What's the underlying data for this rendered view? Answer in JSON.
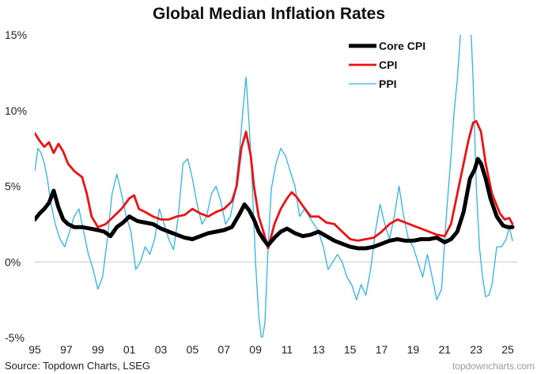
{
  "chart_data": {
    "type": "line",
    "title": "Global Median Inflation Rates",
    "xlabel": "",
    "ylabel": "",
    "x_range": [
      1995,
      2025.6
    ],
    "y_range": [
      -5,
      15
    ],
    "y_ticks": [
      {
        "value": -5,
        "label": "-5%"
      },
      {
        "value": 0,
        "label": "0%"
      },
      {
        "value": 5,
        "label": "5%"
      },
      {
        "value": 10,
        "label": "10%"
      },
      {
        "value": 15,
        "label": "15%"
      }
    ],
    "x_ticks": [
      {
        "value": 1995,
        "label": "95"
      },
      {
        "value": 1997,
        "label": "97"
      },
      {
        "value": 1999,
        "label": "99"
      },
      {
        "value": 2001,
        "label": "01"
      },
      {
        "value": 2003,
        "label": "03"
      },
      {
        "value": 2005,
        "label": "05"
      },
      {
        "value": 2007,
        "label": "07"
      },
      {
        "value": 2009,
        "label": "09"
      },
      {
        "value": 2011,
        "label": "11"
      },
      {
        "value": 2013,
        "label": "13"
      },
      {
        "value": 2015,
        "label": "15"
      },
      {
        "value": 2017,
        "label": "17"
      },
      {
        "value": 2019,
        "label": "19"
      },
      {
        "value": 2021,
        "label": "21"
      },
      {
        "value": 2023,
        "label": "23"
      },
      {
        "value": 2025,
        "label": "25"
      }
    ],
    "grid": false,
    "legend_position": "top-right",
    "series": [
      {
        "name": "Core CPI",
        "color": "#000000",
        "x": [
          1995.0,
          1995.3,
          1995.6,
          1995.9,
          1996.2,
          1996.5,
          1996.8,
          1997.1,
          1997.5,
          1998.0,
          1998.5,
          1999.0,
          1999.4,
          1999.8,
          2000.2,
          2000.6,
          2001.0,
          2001.5,
          2002.0,
          2002.5,
          2003.0,
          2003.5,
          2004.0,
          2004.5,
          2005.0,
          2005.5,
          2006.0,
          2006.5,
          2007.0,
          2007.5,
          2008.0,
          2008.3,
          2008.6,
          2008.9,
          2009.2,
          2009.5,
          2009.8,
          2010.2,
          2010.6,
          2011.0,
          2011.5,
          2012.0,
          2012.5,
          2013.0,
          2013.5,
          2014.0,
          2014.5,
          2015.0,
          2015.5,
          2016.0,
          2016.5,
          2017.0,
          2017.5,
          2018.0,
          2018.5,
          2019.0,
          2019.5,
          2020.0,
          2020.5,
          2021.0,
          2021.4,
          2021.8,
          2022.2,
          2022.6,
          2022.9,
          2023.1,
          2023.3,
          2023.6,
          2023.9,
          2024.3,
          2024.7,
          2025.0,
          2025.3
        ],
        "y": [
          2.8,
          3.2,
          3.5,
          3.9,
          4.7,
          3.6,
          2.8,
          2.5,
          2.3,
          2.3,
          2.2,
          2.1,
          2.0,
          1.7,
          2.3,
          2.6,
          3.0,
          2.7,
          2.6,
          2.5,
          2.2,
          2.0,
          1.8,
          1.6,
          1.5,
          1.7,
          1.9,
          2.0,
          2.1,
          2.3,
          3.2,
          3.8,
          3.4,
          2.8,
          2.0,
          1.5,
          1.1,
          1.6,
          2.0,
          2.2,
          1.9,
          1.7,
          1.8,
          2.0,
          1.7,
          1.4,
          1.2,
          1.0,
          0.9,
          0.9,
          1.0,
          1.2,
          1.4,
          1.5,
          1.4,
          1.4,
          1.5,
          1.5,
          1.6,
          1.3,
          1.5,
          2.0,
          3.3,
          5.5,
          6.1,
          6.8,
          6.5,
          5.5,
          4.2,
          3.0,
          2.4,
          2.3,
          2.3
        ]
      },
      {
        "name": "CPI",
        "color": "#ee1111",
        "x": [
          1995.0,
          1995.3,
          1995.6,
          1995.9,
          1996.2,
          1996.5,
          1996.8,
          1997.1,
          1997.5,
          1998.0,
          1998.3,
          1998.6,
          1999.0,
          1999.5,
          2000.0,
          2000.5,
          2001.0,
          2001.3,
          2001.6,
          2002.0,
          2002.5,
          2003.0,
          2003.5,
          2004.0,
          2004.5,
          2005.0,
          2005.5,
          2006.0,
          2006.5,
          2007.0,
          2007.5,
          2007.8,
          2008.1,
          2008.4,
          2008.7,
          2008.9,
          2009.2,
          2009.5,
          2009.8,
          2010.2,
          2010.6,
          2011.0,
          2011.3,
          2011.6,
          2012.0,
          2012.5,
          2013.0,
          2013.5,
          2014.0,
          2014.5,
          2015.0,
          2015.5,
          2016.0,
          2016.5,
          2017.0,
          2017.5,
          2018.0,
          2018.5,
          2019.0,
          2019.5,
          2020.0,
          2020.5,
          2021.0,
          2021.4,
          2021.8,
          2022.2,
          2022.5,
          2022.8,
          2023.0,
          2023.3,
          2023.6,
          2024.0,
          2024.5,
          2024.8,
          2025.1,
          2025.3
        ],
        "y": [
          8.5,
          8.0,
          7.6,
          7.9,
          7.2,
          7.8,
          7.3,
          6.5,
          6.0,
          5.6,
          4.5,
          3.0,
          2.3,
          2.5,
          3.0,
          3.5,
          4.2,
          4.4,
          3.5,
          3.3,
          3.0,
          2.8,
          2.8,
          3.0,
          3.1,
          3.5,
          3.2,
          3.0,
          3.3,
          3.5,
          4.0,
          5.0,
          7.5,
          8.6,
          7.0,
          5.0,
          3.0,
          2.0,
          0.9,
          2.5,
          3.5,
          4.2,
          4.6,
          4.3,
          3.7,
          3.0,
          3.0,
          2.6,
          2.5,
          2.0,
          1.5,
          1.4,
          1.5,
          1.6,
          2.0,
          2.5,
          2.8,
          2.6,
          2.4,
          2.2,
          2.0,
          1.8,
          1.7,
          2.5,
          4.5,
          6.5,
          8.0,
          9.2,
          9.3,
          8.6,
          6.5,
          4.5,
          3.2,
          2.8,
          2.9,
          2.5
        ]
      },
      {
        "name": "PPI",
        "color": "#2eb2e8",
        "x": [
          1995.0,
          1995.2,
          1995.4,
          1995.6,
          1995.8,
          1996.0,
          1996.3,
          1996.6,
          1996.9,
          1997.2,
          1997.5,
          1997.8,
          1998.1,
          1998.4,
          1998.7,
          1999.0,
          1999.3,
          1999.6,
          1999.9,
          2000.2,
          2000.5,
          2000.8,
          2001.1,
          2001.4,
          2001.7,
          2002.0,
          2002.3,
          2002.6,
          2002.9,
          2003.2,
          2003.5,
          2003.8,
          2004.1,
          2004.4,
          2004.7,
          2005.0,
          2005.3,
          2005.6,
          2005.9,
          2006.2,
          2006.5,
          2006.8,
          2007.1,
          2007.4,
          2007.7,
          2008.0,
          2008.2,
          2008.4,
          2008.6,
          2008.8,
          2009.0,
          2009.2,
          2009.4,
          2009.6,
          2009.8,
          2010.0,
          2010.3,
          2010.6,
          2010.9,
          2011.2,
          2011.5,
          2011.8,
          2012.1,
          2012.4,
          2012.7,
          2013.0,
          2013.3,
          2013.6,
          2013.9,
          2014.2,
          2014.5,
          2014.8,
          2015.1,
          2015.4,
          2015.7,
          2016.0,
          2016.3,
          2016.6,
          2016.9,
          2017.2,
          2017.5,
          2017.8,
          2018.1,
          2018.4,
          2018.7,
          2019.0,
          2019.3,
          2019.6,
          2019.9,
          2020.2,
          2020.5,
          2020.8,
          2021.1,
          2021.4,
          2021.6,
          2021.8,
          2022.0,
          2022.2,
          2022.4,
          2022.6,
          2022.8,
          2023.0,
          2023.2,
          2023.4,
          2023.6,
          2023.8,
          2024.0,
          2024.3,
          2024.6,
          2024.9,
          2025.1,
          2025.3
        ],
        "y": [
          6.0,
          7.5,
          7.2,
          6.5,
          5.5,
          4.0,
          2.5,
          1.5,
          1.0,
          2.0,
          3.0,
          3.5,
          2.0,
          0.5,
          -0.5,
          -1.8,
          -1.0,
          1.5,
          4.5,
          5.8,
          4.5,
          3.0,
          2.0,
          -0.5,
          0.0,
          1.0,
          0.5,
          1.5,
          3.5,
          2.5,
          1.5,
          0.8,
          3.0,
          6.5,
          6.8,
          5.5,
          3.8,
          2.5,
          3.0,
          4.5,
          5.0,
          4.0,
          2.5,
          3.0,
          4.5,
          7.5,
          10.0,
          12.2,
          9.0,
          5.0,
          0.0,
          -3.5,
          -5.3,
          -4.0,
          1.0,
          4.8,
          6.5,
          7.5,
          7.0,
          6.0,
          5.0,
          3.0,
          3.5,
          3.0,
          2.5,
          2.0,
          1.0,
          -0.5,
          0.0,
          0.5,
          0.0,
          -1.0,
          -1.5,
          -2.5,
          -1.5,
          -2.2,
          -0.5,
          2.0,
          3.8,
          2.5,
          1.5,
          3.0,
          5.0,
          3.0,
          1.5,
          1.0,
          0.0,
          -1.0,
          0.5,
          -1.0,
          -2.5,
          -1.8,
          3.0,
          7.0,
          10.0,
          12.0,
          15.0,
          17.0,
          18.0,
          17.0,
          12.0,
          5.0,
          1.0,
          -1.0,
          -2.3,
          -2.2,
          -1.5,
          1.0,
          1.0,
          1.5,
          2.3,
          1.4
        ]
      }
    ]
  },
  "footer": {
    "source": "Source: Topdown Charts, LSEG",
    "watermark": "topdowncharts.com"
  }
}
